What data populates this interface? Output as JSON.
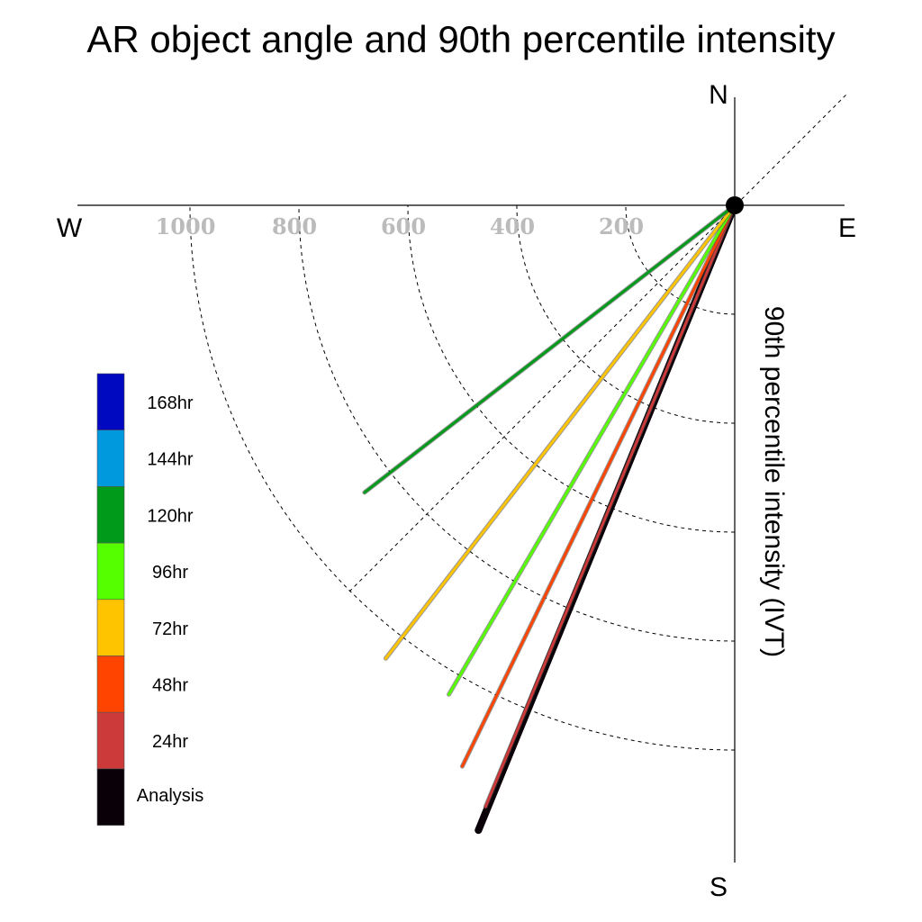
{
  "chart_data": {
    "type": "radial-vector",
    "title": "AR object angle and 90th percentile intensity",
    "ylabel": "90th percentile intensity (IVT)",
    "compass": {
      "north": "N",
      "south": "S",
      "east": "E",
      "west": "W"
    },
    "radial_ticks": [
      "200",
      "400",
      "600",
      "800",
      "1000"
    ],
    "radial_tick_values": [
      200,
      400,
      600,
      800,
      1000
    ],
    "intensity_range": [
      0,
      1200
    ],
    "grid": true,
    "legend_position": "left",
    "series": [
      {
        "name": "Analysis",
        "color": "#0a0008",
        "angle_deg": 202.3,
        "intensity": 1240
      },
      {
        "name": "24hr",
        "color": "#cc3a3a",
        "angle_deg": 202.5,
        "intensity": 1195
      },
      {
        "name": "48hr",
        "color": "#ff4400",
        "angle_deg": 205.9,
        "intensity": 1145
      },
      {
        "name": "96hr",
        "color": "#55ff00",
        "angle_deg": 210.3,
        "intensity": 1040
      },
      {
        "name": "72hr",
        "color": "#ffc400",
        "angle_deg": 217.6,
        "intensity": 1050
      },
      {
        "name": "120hr",
        "color": "#009a1a",
        "angle_deg": 232.2,
        "intensity": 860
      }
    ],
    "legend": [
      {
        "label": "168hr",
        "color": "#0008c0"
      },
      {
        "label": "144hr",
        "color": "#0099dd"
      },
      {
        "label": "120hr",
        "color": "#009a1a"
      },
      {
        "label": "96hr",
        "color": "#55ff00"
      },
      {
        "label": "72hr",
        "color": "#ffc400"
      },
      {
        "label": "48hr",
        "color": "#ff4400"
      },
      {
        "label": "24hr",
        "color": "#cc3a3a"
      },
      {
        "label": "Analysis",
        "color": "#0a0008"
      }
    ]
  }
}
